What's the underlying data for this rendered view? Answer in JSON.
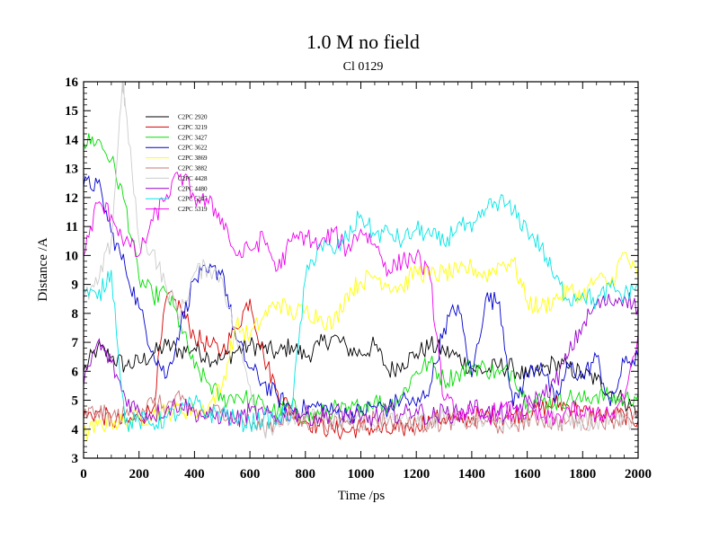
{
  "chart_data": {
    "type": "line",
    "title": "1.0 M no field",
    "subtitle": "Cl 0129",
    "xlabel": "Time /ps",
    "ylabel": "Distance /A",
    "xlim": [
      0,
      2000
    ],
    "ylim": [
      3,
      16
    ],
    "xticks": [
      0,
      200,
      400,
      600,
      800,
      1000,
      1200,
      1400,
      1600,
      1800,
      2000
    ],
    "yticks": [
      3,
      4,
      5,
      6,
      7,
      8,
      9,
      10,
      11,
      12,
      13,
      14,
      15,
      16
    ],
    "legend_position": "top-left",
    "series": [
      {
        "name": "C2PC 2920",
        "color": "#000000",
        "x": [
          0,
          50,
          100,
          150,
          200,
          250,
          300,
          350,
          400,
          450,
          500,
          550,
          600,
          650,
          700,
          750,
          800,
          850,
          900,
          950,
          1000,
          1050,
          1100,
          1150,
          1200,
          1250,
          1300,
          1350,
          1400,
          1450,
          1500,
          1550,
          1600,
          1650,
          1700,
          1750,
          1800,
          1850,
          1900,
          1950,
          2000
        ],
        "values": [
          6.0,
          6.8,
          6.5,
          6.2,
          6.3,
          6.6,
          6.9,
          6.7,
          6.8,
          6.5,
          6.4,
          6.7,
          6.9,
          6.8,
          6.6,
          6.9,
          6.5,
          6.9,
          7.2,
          6.8,
          6.6,
          6.9,
          6.0,
          6.3,
          6.6,
          6.9,
          6.7,
          6.5,
          6.1,
          6.0,
          6.2,
          6.1,
          5.8,
          6.0,
          6.3,
          6.1,
          5.9,
          5.7,
          5.3,
          5.0,
          4.6
        ]
      },
      {
        "name": "C2PC 3219",
        "color": "#d40000",
        "x": [
          0,
          50,
          100,
          150,
          200,
          250,
          300,
          350,
          400,
          450,
          500,
          550,
          600,
          650,
          700,
          750,
          800,
          850,
          900,
          950,
          1000,
          1050,
          1100,
          1150,
          1200,
          1250,
          1300,
          1350,
          1400,
          1450,
          1500,
          1550,
          1600,
          1650,
          1700,
          1750,
          1800,
          1850,
          1900,
          1950,
          2000
        ],
        "values": [
          4.4,
          4.6,
          4.3,
          4.2,
          4.4,
          4.7,
          8.6,
          8.2,
          7.2,
          6.9,
          6.7,
          7.5,
          8.5,
          6.5,
          5.3,
          4.6,
          4.3,
          4.1,
          4.0,
          3.9,
          4.1,
          4.0,
          3.9,
          4.0,
          4.2,
          4.3,
          4.4,
          4.3,
          4.4,
          4.5,
          4.4,
          4.5,
          4.6,
          4.7,
          4.9,
          4.8,
          4.6,
          4.5,
          4.4,
          4.5,
          4.3
        ]
      },
      {
        "name": "C2PC 3427",
        "color": "#00dd00",
        "x": [
          0,
          50,
          100,
          150,
          200,
          250,
          300,
          350,
          400,
          450,
          500,
          550,
          600,
          650,
          700,
          750,
          800,
          850,
          900,
          950,
          1000,
          1050,
          1100,
          1150,
          1200,
          1250,
          1300,
          1350,
          1400,
          1450,
          1500,
          1550,
          1600,
          1650,
          1700,
          1750,
          1800,
          1850,
          1900,
          1950,
          2000
        ],
        "values": [
          13.9,
          14.0,
          13.3,
          11.8,
          9.2,
          8.6,
          8.7,
          7.6,
          6.1,
          5.6,
          5.0,
          5.2,
          5.0,
          4.8,
          4.6,
          4.8,
          4.4,
          4.5,
          4.7,
          4.6,
          4.8,
          5.0,
          4.8,
          5.2,
          6.0,
          6.3,
          5.7,
          5.9,
          6.2,
          6.1,
          5.9,
          6.0,
          4.9,
          5.0,
          4.9,
          5.1,
          5.0,
          5.2,
          5.1,
          5.0,
          5.2
        ]
      },
      {
        "name": "C2PC 3622",
        "color": "#0000cc",
        "x": [
          0,
          50,
          100,
          150,
          200,
          250,
          300,
          350,
          400,
          450,
          500,
          550,
          600,
          650,
          700,
          750,
          800,
          850,
          900,
          950,
          1000,
          1050,
          1100,
          1150,
          1200,
          1250,
          1300,
          1350,
          1400,
          1450,
          1500,
          1550,
          1600,
          1650,
          1700,
          1750,
          1800,
          1850,
          1900,
          1950,
          2000
        ],
        "values": [
          12.4,
          12.5,
          10.8,
          9.6,
          8.2,
          6.7,
          5.8,
          7.6,
          9.2,
          9.4,
          9.5,
          7.1,
          6.1,
          5.6,
          5.1,
          4.7,
          4.7,
          4.8,
          4.6,
          4.5,
          4.6,
          4.8,
          4.7,
          5.1,
          4.8,
          5.5,
          7.5,
          8.3,
          5.8,
          8.5,
          8.4,
          4.8,
          5.9,
          6.3,
          4.9,
          6.2,
          5.8,
          6.5,
          4.8,
          6.3,
          6.5
        ]
      },
      {
        "name": "C2PC 3869",
        "color": "#ffff00",
        "x": [
          0,
          50,
          100,
          150,
          200,
          250,
          300,
          350,
          400,
          450,
          500,
          550,
          600,
          650,
          700,
          750,
          800,
          850,
          900,
          950,
          1000,
          1050,
          1100,
          1150,
          1200,
          1250,
          1300,
          1350,
          1400,
          1450,
          1500,
          1550,
          1600,
          1650,
          1700,
          1750,
          1800,
          1850,
          1900,
          1950,
          2000
        ],
        "values": [
          3.8,
          4.1,
          4.3,
          4.2,
          4.4,
          4.5,
          4.6,
          4.7,
          4.6,
          4.8,
          5.5,
          7.6,
          7.2,
          7.9,
          8.4,
          8.0,
          8.1,
          7.9,
          7.6,
          8.7,
          9.1,
          9.3,
          9.0,
          8.9,
          9.5,
          9.3,
          9.4,
          9.4,
          9.6,
          9.3,
          9.7,
          9.8,
          8.4,
          8.2,
          8.5,
          8.8,
          8.6,
          9.2,
          9.0,
          10.1,
          9.2
        ]
      },
      {
        "name": "C2PC 3882",
        "color": "#c87878",
        "x": [
          0,
          50,
          100,
          150,
          200,
          250,
          300,
          350,
          400,
          450,
          500,
          550,
          600,
          650,
          700,
          750,
          800,
          850,
          900,
          950,
          1000,
          1050,
          1100,
          1150,
          1200,
          1250,
          1300,
          1350,
          1400,
          1450,
          1500,
          1550,
          1600,
          1650,
          1700,
          1750,
          1800,
          1850,
          1900,
          1950,
          2000
        ],
        "values": [
          4.5,
          4.6,
          4.4,
          4.5,
          4.7,
          4.9,
          4.8,
          5.0,
          4.6,
          4.5,
          4.7,
          4.4,
          4.2,
          4.0,
          4.3,
          4.5,
          4.2,
          4.4,
          4.1,
          4.3,
          4.2,
          4.4,
          4.3,
          4.2,
          4.1,
          4.3,
          4.2,
          4.4,
          4.2,
          4.3,
          4.1,
          4.2,
          4.3,
          4.4,
          4.2,
          4.3,
          4.2,
          4.4,
          4.3,
          4.5,
          4.4
        ]
      },
      {
        "name": "C2PC 4428",
        "color": "#cccccc",
        "x": [
          0,
          50,
          100,
          140,
          150,
          200,
          250,
          300,
          350,
          400,
          450,
          500,
          550,
          600,
          650,
          700,
          750,
          800,
          850,
          900,
          950,
          1000,
          1050,
          1100,
          1150,
          1200,
          1250,
          1300,
          1350,
          1400,
          1450,
          1500,
          1550,
          1600,
          1650,
          1700,
          1750,
          1800,
          1850,
          1900,
          1950,
          2000
        ],
        "values": [
          8.5,
          9.0,
          10.5,
          16.0,
          15.2,
          10.5,
          10.2,
          8.8,
          8.0,
          9.4,
          9.6,
          9.2,
          7.2,
          5.5,
          4.0,
          4.2,
          4.4,
          4.3,
          4.5,
          4.2,
          4.4,
          4.3,
          4.1,
          4.3,
          4.4,
          4.2,
          4.3,
          4.4,
          4.5,
          4.3,
          4.4,
          4.2,
          4.3,
          4.4,
          4.5,
          4.3,
          4.4,
          4.2,
          4.3,
          4.4,
          4.3,
          4.4
        ]
      },
      {
        "name": "C2PC 4480",
        "color": "#9900cc",
        "x": [
          0,
          50,
          100,
          150,
          200,
          250,
          300,
          350,
          400,
          450,
          500,
          550,
          600,
          650,
          700,
          750,
          800,
          850,
          900,
          950,
          1000,
          1050,
          1100,
          1150,
          1200,
          1250,
          1300,
          1350,
          1400,
          1450,
          1500,
          1550,
          1600,
          1650,
          1700,
          1750,
          1800,
          1850,
          1900,
          1950,
          2000
        ],
        "values": [
          5.5,
          7.0,
          6.3,
          5.1,
          4.6,
          4.5,
          4.7,
          4.9,
          4.6,
          4.4,
          4.5,
          4.3,
          4.6,
          4.5,
          4.4,
          4.6,
          4.5,
          4.4,
          4.6,
          4.5,
          4.3,
          4.4,
          4.6,
          4.5,
          4.7,
          4.4,
          4.6,
          4.5,
          4.8,
          4.6,
          4.5,
          4.7,
          4.9,
          5.1,
          5.6,
          6.6,
          7.6,
          8.3,
          8.4,
          8.6,
          8.2
        ]
      },
      {
        "name": "C2PC 5247",
        "color": "#00e5e5",
        "x": [
          0,
          50,
          100,
          150,
          200,
          250,
          300,
          350,
          400,
          450,
          500,
          550,
          600,
          650,
          700,
          750,
          800,
          850,
          900,
          950,
          1000,
          1050,
          1100,
          1150,
          1200,
          1250,
          1300,
          1350,
          1400,
          1450,
          1500,
          1550,
          1600,
          1650,
          1700,
          1750,
          1800,
          1850,
          1900,
          1950,
          2000
        ],
        "values": [
          8.8,
          8.5,
          9.5,
          4.2,
          4.3,
          4.2,
          4.4,
          4.6,
          4.9,
          4.5,
          4.6,
          4.3,
          4.2,
          4.4,
          4.3,
          4.6,
          9.2,
          10.4,
          10.1,
          10.6,
          11.4,
          10.7,
          10.8,
          10.5,
          10.9,
          10.7,
          10.4,
          11.1,
          10.8,
          11.6,
          11.9,
          11.5,
          10.9,
          10.3,
          9.2,
          8.5,
          8.7,
          8.4,
          8.9,
          8.6,
          9.0
        ]
      },
      {
        "name": "C2PC 5319",
        "color": "#ee00ee",
        "x": [
          0,
          50,
          100,
          150,
          200,
          250,
          300,
          350,
          400,
          450,
          500,
          550,
          600,
          650,
          700,
          750,
          800,
          850,
          900,
          950,
          1000,
          1050,
          1100,
          1150,
          1200,
          1250,
          1300,
          1350,
          1400,
          1450,
          1500,
          1550,
          1600,
          1650,
          1700,
          1750,
          1800,
          1850,
          1900,
          1950,
          2000
        ],
        "values": [
          10.0,
          11.8,
          11.4,
          10.5,
          10.0,
          11.2,
          12.1,
          12.8,
          12.0,
          11.8,
          11.3,
          10.0,
          10.2,
          10.6,
          9.5,
          10.5,
          10.7,
          10.3,
          10.8,
          10.2,
          10.9,
          10.4,
          9.5,
          9.8,
          10.0,
          9.2,
          5.0,
          4.6,
          4.5,
          4.4,
          4.7,
          4.5,
          4.6,
          4.4,
          4.3,
          4.7,
          4.5,
          4.6,
          4.4,
          5.0,
          7.3
        ]
      }
    ]
  }
}
